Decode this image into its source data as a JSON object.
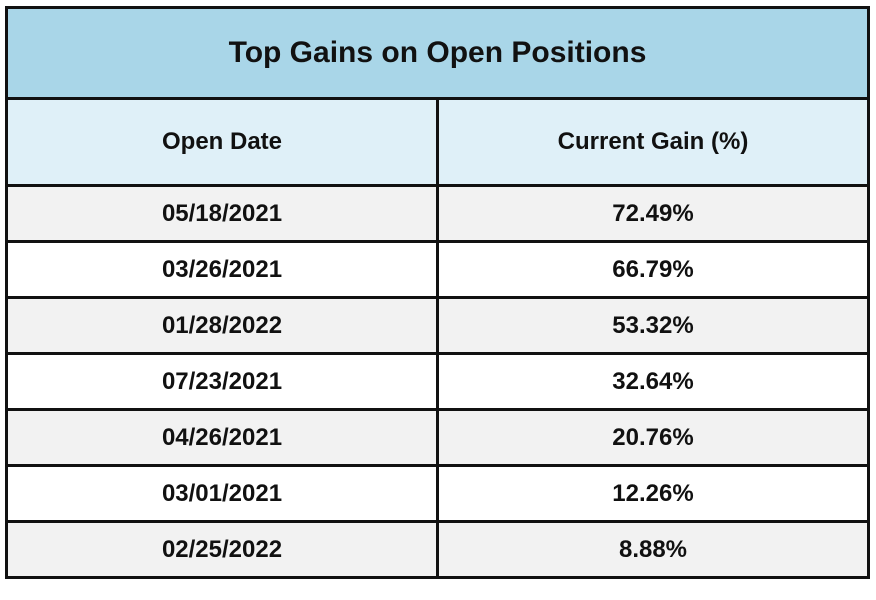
{
  "header": {
    "title": "Top Gains on Open Positions"
  },
  "table": {
    "columns": [
      "Open Date",
      "Current Gain (%)"
    ],
    "rows": [
      [
        "05/18/2021",
        "72.49%"
      ],
      [
        "03/26/2021",
        "66.79%"
      ],
      [
        "01/28/2022",
        "53.32%"
      ],
      [
        "07/23/2021",
        "32.64%"
      ],
      [
        "04/26/2021",
        "20.76%"
      ],
      [
        "03/01/2021",
        "12.26%"
      ],
      [
        "02/25/2022",
        "8.88%"
      ]
    ]
  }
}
